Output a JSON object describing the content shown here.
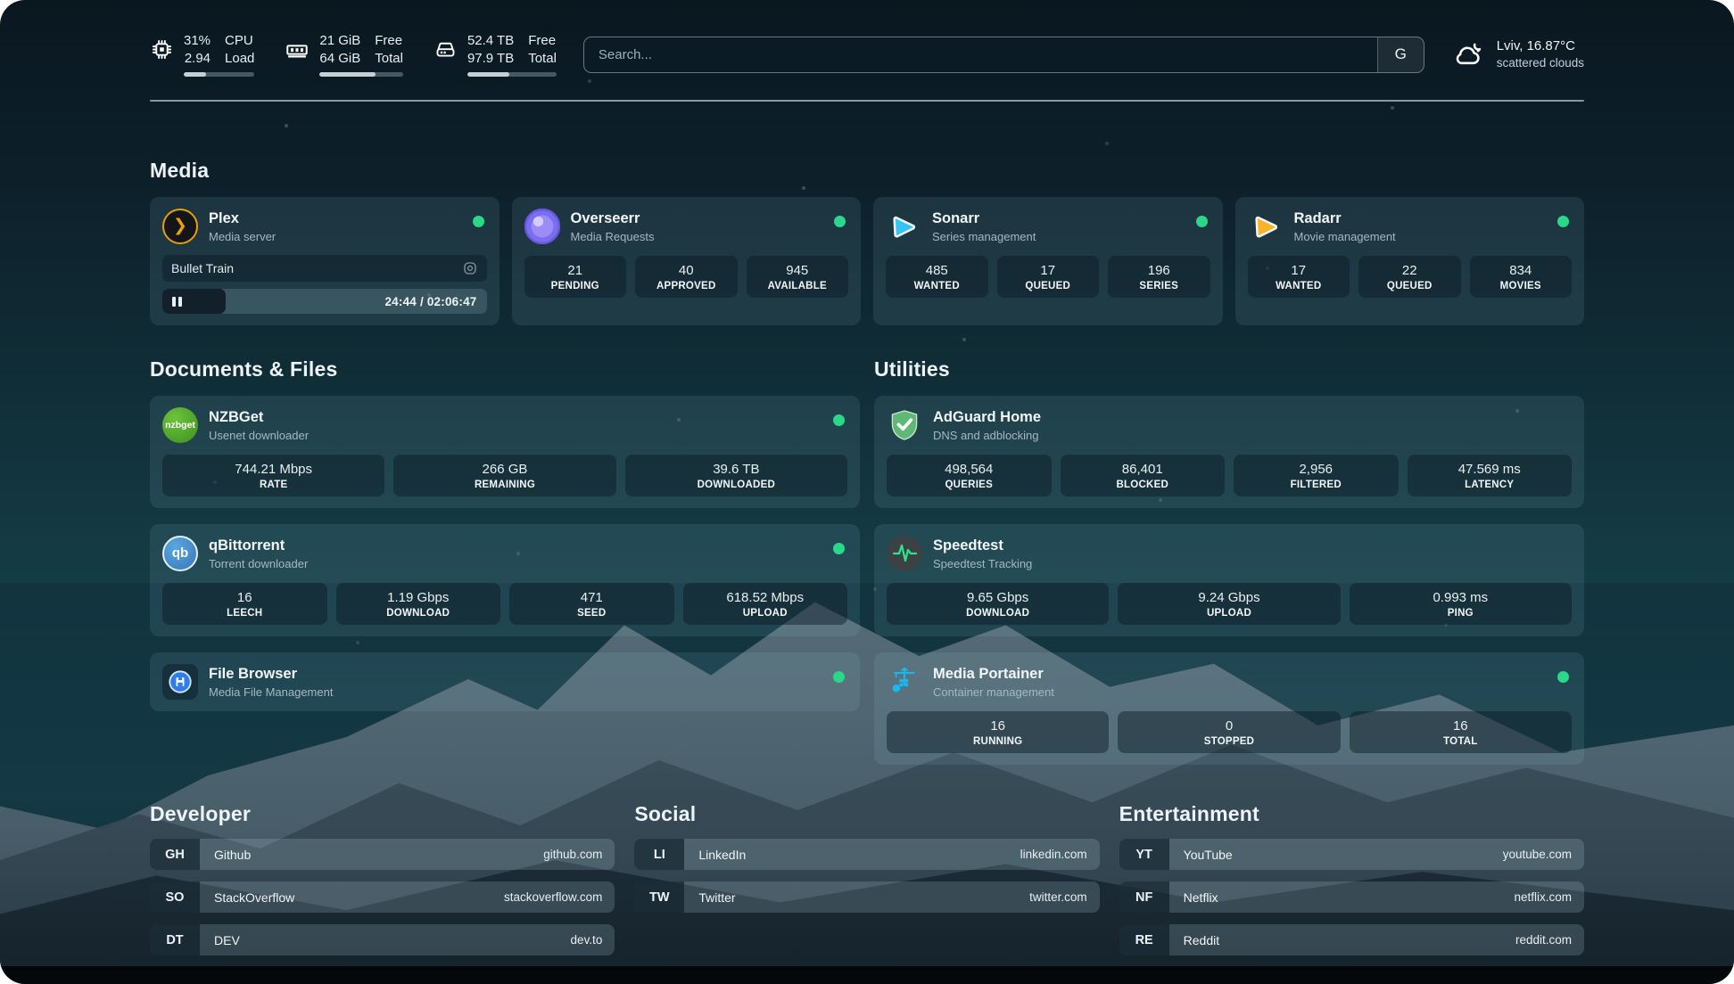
{
  "colors": {
    "online_green": "#2bd889",
    "plex_gold": "#e5a00d",
    "sonarr_blue": "#35c5f4",
    "radarr_yellow": "#f9b42c",
    "adguard_green": "#5fb876",
    "portainer_blue": "#18b9f2",
    "speedtest_green": "#2be28e"
  },
  "top_bar": {
    "stats": [
      {
        "icon": "cpu-icon",
        "value_top": "31%",
        "value_bottom": "2.94",
        "label_top": "CPU",
        "label_bottom": "Load",
        "progress_pct": 31
      },
      {
        "icon": "memory-icon",
        "value_top": "21 GiB",
        "value_bottom": "64 GiB",
        "label_top": "Free",
        "label_bottom": "Total",
        "progress_pct": 67
      },
      {
        "icon": "disk-icon",
        "value_top": "52.4 TB",
        "value_bottom": "97.9 TB",
        "label_top": "Free",
        "label_bottom": "Total",
        "progress_pct": 47
      }
    ],
    "search": {
      "placeholder": "Search...",
      "engine_button": "G"
    },
    "weather": {
      "summary": "Lviv, 16.87°C",
      "condition": "scattered clouds"
    }
  },
  "media": {
    "header": "Media",
    "plex": {
      "name": "Plex",
      "description": "Media server",
      "online": true,
      "now_playing": "Bullet Train",
      "time": "24:44 / 02:06:47",
      "progress_pct": 19.5
    },
    "cards": [
      {
        "name": "Overseerr",
        "description": "Media Requests",
        "online": true,
        "stats": [
          {
            "value": "21",
            "label": "PENDING"
          },
          {
            "value": "40",
            "label": "APPROVED"
          },
          {
            "value": "945",
            "label": "AVAILABLE"
          }
        ]
      },
      {
        "name": "Sonarr",
        "description": "Series management",
        "online": true,
        "stats": [
          {
            "value": "485",
            "label": "WANTED"
          },
          {
            "value": "17",
            "label": "QUEUED"
          },
          {
            "value": "196",
            "label": "SERIES"
          }
        ]
      },
      {
        "name": "Radarr",
        "description": "Movie management",
        "online": true,
        "stats": [
          {
            "value": "17",
            "label": "WANTED"
          },
          {
            "value": "22",
            "label": "QUEUED"
          },
          {
            "value": "834",
            "label": "MOVIES"
          }
        ]
      }
    ]
  },
  "documents": {
    "header": "Documents & Files",
    "cards": [
      {
        "name": "NZBGet",
        "description": "Usenet downloader",
        "online": true,
        "icon_text": "nzbget",
        "stats": [
          {
            "value": "744.21 Mbps",
            "label": "RATE"
          },
          {
            "value": "266 GB",
            "label": "REMAINING"
          },
          {
            "value": "39.6 TB",
            "label": "DOWNLOADED"
          }
        ]
      },
      {
        "name": "qBittorrent",
        "description": "Torrent downloader",
        "online": true,
        "icon_text": "qb",
        "stats": [
          {
            "value": "16",
            "label": "LEECH"
          },
          {
            "value": "1.19 Gbps",
            "label": "DOWNLOAD"
          },
          {
            "value": "471",
            "label": "SEED"
          },
          {
            "value": "618.52 Mbps",
            "label": "UPLOAD"
          }
        ]
      },
      {
        "name": "File Browser",
        "description": "Media File Management",
        "online": true,
        "stats": []
      }
    ]
  },
  "utilities": {
    "header": "Utilities",
    "cards": [
      {
        "name": "AdGuard Home",
        "description": "DNS and adblocking",
        "stats": [
          {
            "value": "498,564",
            "label": "QUERIES"
          },
          {
            "value": "86,401",
            "label": "BLOCKED"
          },
          {
            "value": "2,956",
            "label": "FILTERED"
          },
          {
            "value": "47.569 ms",
            "label": "LATENCY"
          }
        ]
      },
      {
        "name": "Speedtest",
        "description": "Speedtest Tracking",
        "stats": [
          {
            "value": "9.65 Gbps",
            "label": "DOWNLOAD"
          },
          {
            "value": "9.24 Gbps",
            "label": "UPLOAD"
          },
          {
            "value": "0.993 ms",
            "label": "PING"
          }
        ]
      },
      {
        "name": "Media Portainer",
        "description": "Container management",
        "online": true,
        "stats": [
          {
            "value": "16",
            "label": "RUNNING"
          },
          {
            "value": "0",
            "label": "STOPPED"
          },
          {
            "value": "16",
            "label": "TOTAL"
          }
        ]
      }
    ]
  },
  "bookmarks": [
    {
      "header": "Developer",
      "items": [
        {
          "abbr": "GH",
          "name": "Github",
          "url": "github.com"
        },
        {
          "abbr": "SO",
          "name": "StackOverflow",
          "url": "stackoverflow.com"
        },
        {
          "abbr": "DT",
          "name": "DEV",
          "url": "dev.to"
        }
      ]
    },
    {
      "header": "Social",
      "items": [
        {
          "abbr": "LI",
          "name": "LinkedIn",
          "url": "linkedin.com"
        },
        {
          "abbr": "TW",
          "name": "Twitter",
          "url": "twitter.com"
        }
      ]
    },
    {
      "header": "Entertainment",
      "items": [
        {
          "abbr": "YT",
          "name": "YouTube",
          "url": "youtube.com"
        },
        {
          "abbr": "NF",
          "name": "Netflix",
          "url": "netflix.com"
        },
        {
          "abbr": "RE",
          "name": "Reddit",
          "url": "reddit.com"
        }
      ]
    }
  ]
}
